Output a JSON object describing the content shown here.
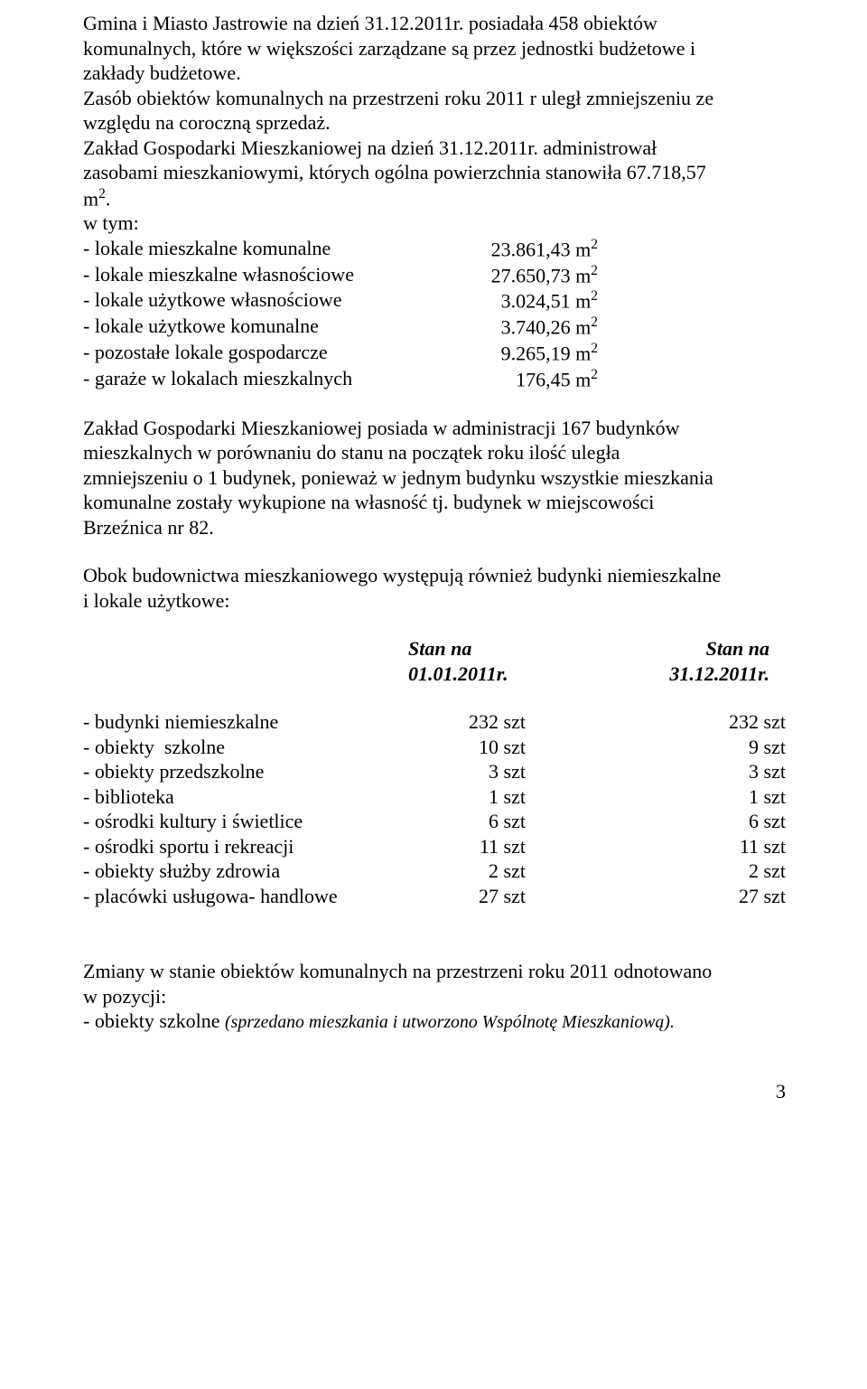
{
  "p1_line1": "    Gmina i Miasto Jastrowie  na dzień 31.12.2011r. posiadała 458 obiektów",
  "p1_line2": "komunalnych, które w większości zarządzane są przez jednostki budżetowe i",
  "p1_line3": "zakłady budżetowe.",
  "p2_line1": "Zasób obiektów komunalnych na przestrzeni roku 2011 r  uległ zmniejszeniu ze",
  "p2_line2": "względu na coroczną sprzedaż.",
  "p2_line3": "Zakład Gospodarki Mieszkaniowej na dzień 31.12.2011r. administrował",
  "p2_line4": "zasobami mieszkaniowymi, których ogólna powierzchnia stanowiła 67.718,57",
  "p2_line5_pre": "m",
  "p2_line5_post": ".",
  "wtym": "w tym:",
  "list1": [
    {
      "label": "- lokale mieszkalne komunalne",
      "val": "23.861,43 m"
    },
    {
      "label": "- lokale mieszkalne własnościowe",
      "val": "27.650,73 m"
    },
    {
      "label": "- lokale użytkowe własnościowe",
      "val": "3.024,51 m"
    },
    {
      "label": "- lokale użytkowe komunalne",
      "val": "3.740,26 m"
    },
    {
      "label": "- pozostałe lokale gospodarcze",
      "val": "9.265,19 m"
    },
    {
      "label": "- garaże w lokalach mieszkalnych",
      "val": "176,45 m"
    }
  ],
  "sup2": "2",
  "p3_line1": "Zakład Gospodarki Mieszkaniowej  posiada w administracji 167 budynków",
  "p3_line2": "mieszkalnych w porównaniu do stanu na początek roku ilość uległa",
  "p3_line3": "zmniejszeniu o 1 budynek, ponieważ w jednym budynku wszystkie mieszkania",
  "p3_line4": "komunalne zostały wykupione na własność tj. budynek  w miejscowości",
  "p3_line5": "Brzeźnica nr 82.",
  "p4_line1": "Obok budownictwa mieszkaniowego występują również budynki niemieszkalne",
  "p4_line2": "i lokale użytkowe:",
  "hdr_col1_l1": "Stan na",
  "hdr_col1_l2": "01.01.2011r.",
  "hdr_col2_l1": "Stan na",
  "hdr_col2_l2": "31.12.2011r.",
  "list2": [
    {
      "label": "- budynki niemieszkalne",
      "c1": "232 szt",
      "c2": "232 szt"
    },
    {
      "label": "- obiekty  szkolne",
      "c1": "10 szt",
      "c2": "9 szt"
    },
    {
      "label": "- obiekty przedszkolne",
      "c1": "3 szt",
      "c2": "3 szt"
    },
    {
      "label": "- biblioteka",
      "c1": "1 szt",
      "c2": "1 szt"
    },
    {
      "label": "- ośrodki kultury i świetlice",
      "c1": "6 szt",
      "c2": "6 szt"
    },
    {
      "label": "- ośrodki sportu i rekreacji",
      "c1": "11 szt",
      "c2": "11 szt"
    },
    {
      "label": "- obiekty służby zdrowia",
      "c1": "2 szt",
      "c2": "2 szt"
    },
    {
      "label": "- placówki usługowa- handlowe",
      "c1": "27 szt",
      "c2": "27 szt"
    }
  ],
  "p5_line1": "Zmiany w stanie obiektów komunalnych na przestrzeni roku 2011 odnotowano",
  "p5_line2": "w pozycji:",
  "p5_bullet_pre": "-   obiekty szkolne ",
  "p5_bullet_ital": "(sprzedano mieszkania i utworzono Wspólnotę Mieszkaniową).",
  "page_number": "3"
}
